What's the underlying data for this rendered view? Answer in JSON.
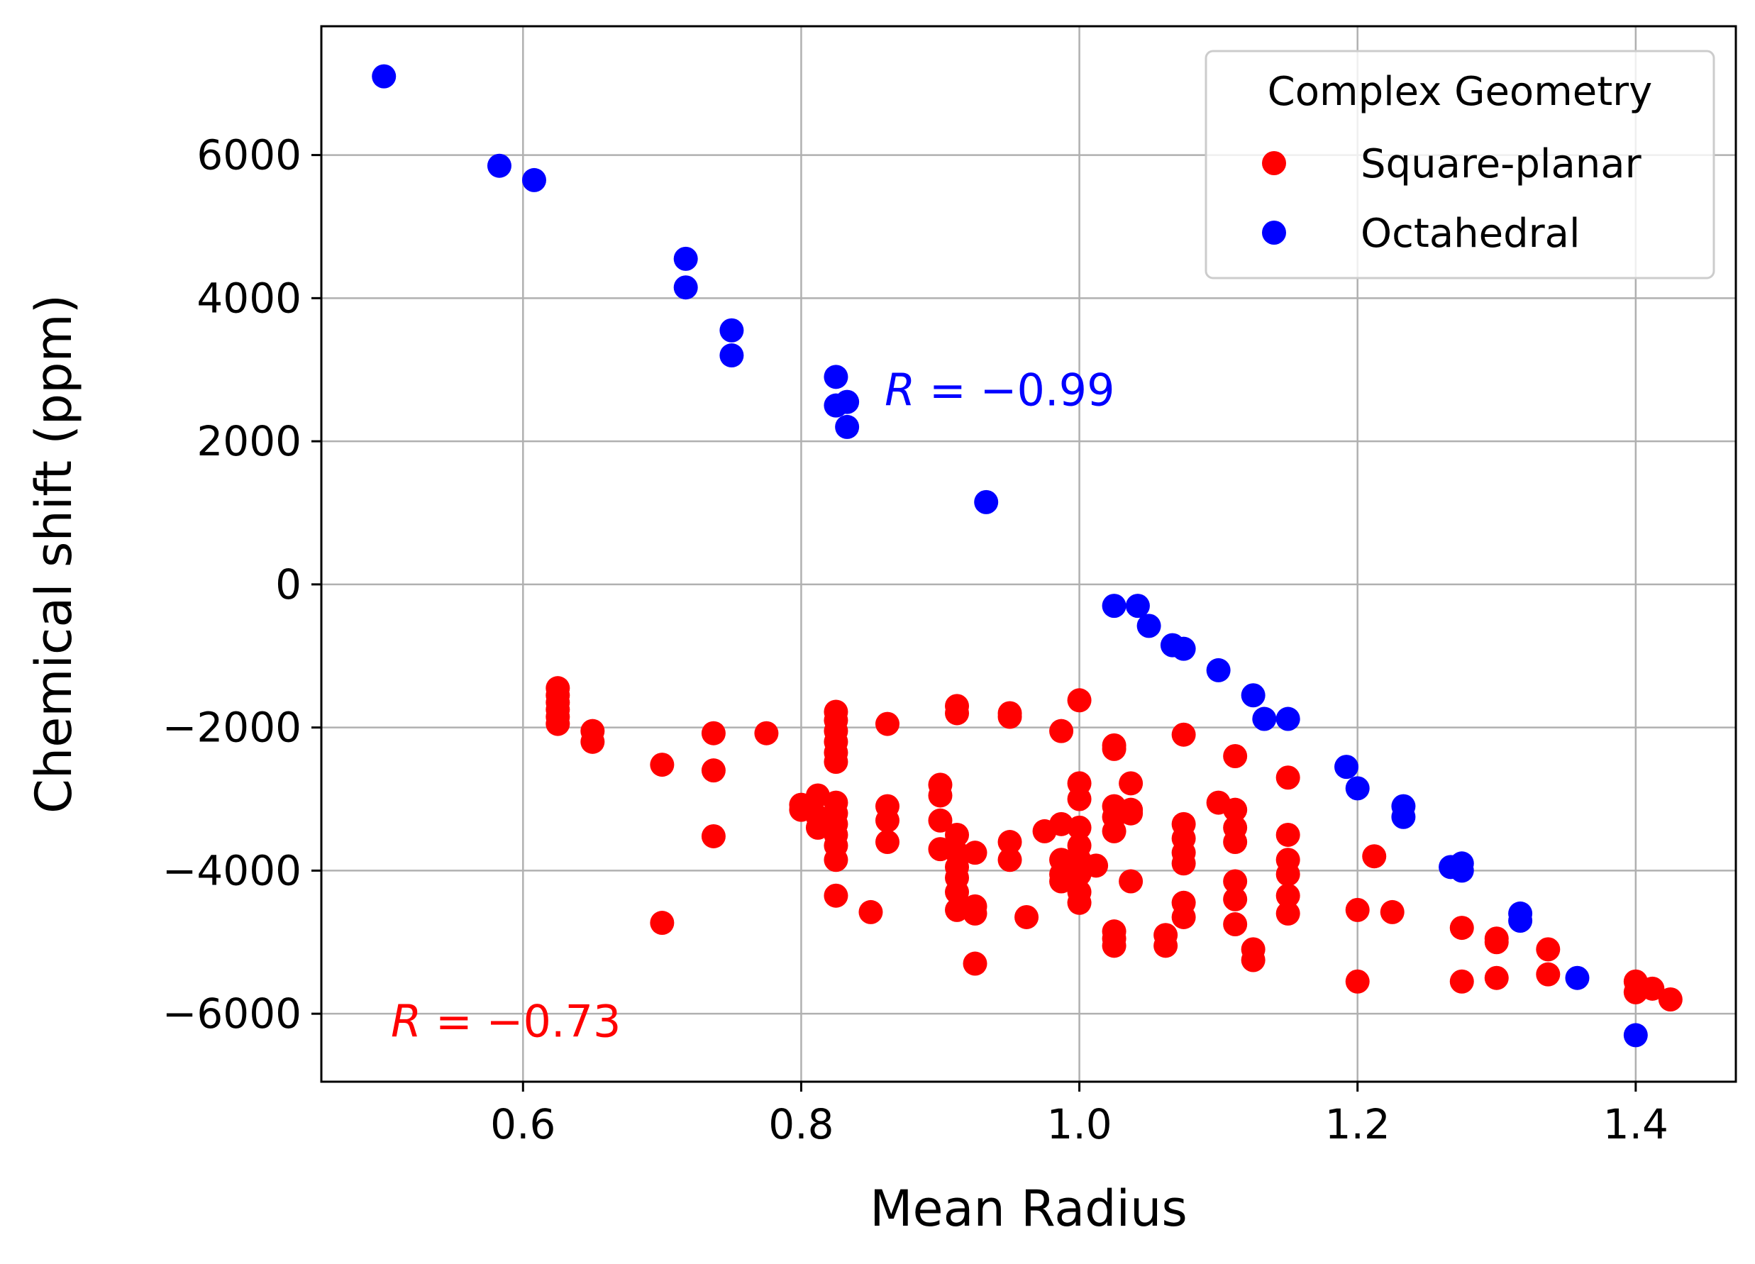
{
  "chart_data": {
    "type": "scatter",
    "title": "",
    "xlabel": "Mean Radius",
    "ylabel": "Chemical shift (ppm)",
    "xlim": [
      0.455,
      1.472
    ],
    "ylim": [
      -6950,
      7800
    ],
    "xticks": [
      0.6,
      0.8,
      1.0,
      1.2,
      1.4
    ],
    "xtick_labels": [
      "0.6",
      "0.8",
      "1.0",
      "1.2",
      "1.4"
    ],
    "yticks": [
      -6000,
      -4000,
      -2000,
      0,
      2000,
      4000,
      6000
    ],
    "ytick_labels": [
      "−6000",
      "−4000",
      "−2000",
      "0",
      "2000",
      "4000",
      "6000"
    ],
    "grid": true,
    "legend": {
      "title": "Complex Geometry",
      "placement": "top-right"
    },
    "annotations": [
      {
        "prefix": "R",
        "text": " = −0.99",
        "color": "#0000ff",
        "x": 0.86,
        "y": 2720
      },
      {
        "prefix": "R",
        "text": " = −0.73",
        "color": "#ff0000",
        "x": 0.505,
        "y": -6100
      }
    ],
    "series": [
      {
        "name": "Square-planar",
        "color": "#ff0000",
        "points": [
          [
            0.625,
            -1450
          ],
          [
            0.625,
            -1550
          ],
          [
            0.625,
            -1650
          ],
          [
            0.625,
            -1750
          ],
          [
            0.625,
            -1850
          ],
          [
            0.625,
            -1950
          ],
          [
            0.65,
            -2050
          ],
          [
            0.65,
            -2200
          ],
          [
            0.7,
            -2520
          ],
          [
            0.7,
            -4730
          ],
          [
            0.737,
            -2080
          ],
          [
            0.737,
            -2600
          ],
          [
            0.737,
            -3520
          ],
          [
            0.775,
            -2080
          ],
          [
            0.8,
            -3080
          ],
          [
            0.8,
            -3150
          ],
          [
            0.812,
            -2950
          ],
          [
            0.812,
            -3250
          ],
          [
            0.812,
            -3400
          ],
          [
            0.825,
            -1780
          ],
          [
            0.825,
            -1900
          ],
          [
            0.825,
            -2050
          ],
          [
            0.825,
            -2200
          ],
          [
            0.825,
            -2350
          ],
          [
            0.825,
            -2480
          ],
          [
            0.825,
            -3050
          ],
          [
            0.825,
            -3200
          ],
          [
            0.825,
            -3350
          ],
          [
            0.825,
            -3500
          ],
          [
            0.825,
            -3650
          ],
          [
            0.825,
            -3850
          ],
          [
            0.825,
            -4350
          ],
          [
            0.85,
            -4580
          ],
          [
            0.862,
            -1950
          ],
          [
            0.862,
            -3100
          ],
          [
            0.862,
            -3300
          ],
          [
            0.862,
            -3600
          ],
          [
            0.9,
            -2800
          ],
          [
            0.9,
            -2950
          ],
          [
            0.9,
            -3300
          ],
          [
            0.9,
            -3700
          ],
          [
            0.912,
            -1700
          ],
          [
            0.912,
            -1800
          ],
          [
            0.912,
            -3500
          ],
          [
            0.912,
            -3750
          ],
          [
            0.912,
            -3950
          ],
          [
            0.912,
            -4100
          ],
          [
            0.912,
            -4300
          ],
          [
            0.912,
            -4550
          ],
          [
            0.925,
            -3750
          ],
          [
            0.925,
            -4500
          ],
          [
            0.925,
            -4600
          ],
          [
            0.925,
            -5300
          ],
          [
            0.95,
            -1800
          ],
          [
            0.95,
            -1850
          ],
          [
            0.95,
            -3600
          ],
          [
            0.95,
            -3850
          ],
          [
            0.962,
            -4650
          ],
          [
            0.975,
            -3450
          ],
          [
            0.987,
            -2050
          ],
          [
            0.987,
            -3350
          ],
          [
            0.987,
            -3850
          ],
          [
            0.987,
            -4050
          ],
          [
            0.987,
            -4150
          ],
          [
            1.0,
            -1620
          ],
          [
            1.0,
            -2780
          ],
          [
            1.0,
            -3000
          ],
          [
            1.0,
            -3400
          ],
          [
            1.0,
            -3650
          ],
          [
            1.0,
            -3850
          ],
          [
            1.0,
            -4050
          ],
          [
            1.0,
            -4300
          ],
          [
            1.0,
            -4450
          ],
          [
            1.012,
            -3930
          ],
          [
            1.025,
            -2250
          ],
          [
            1.025,
            -2300
          ],
          [
            1.025,
            -3100
          ],
          [
            1.025,
            -3250
          ],
          [
            1.025,
            -3450
          ],
          [
            1.025,
            -4850
          ],
          [
            1.025,
            -4950
          ],
          [
            1.025,
            -5050
          ],
          [
            1.037,
            -2780
          ],
          [
            1.037,
            -3150
          ],
          [
            1.037,
            -3200
          ],
          [
            1.037,
            -4150
          ],
          [
            1.062,
            -4900
          ],
          [
            1.062,
            -5050
          ],
          [
            1.075,
            -2100
          ],
          [
            1.075,
            -3350
          ],
          [
            1.075,
            -3550
          ],
          [
            1.075,
            -3750
          ],
          [
            1.075,
            -3900
          ],
          [
            1.075,
            -4450
          ],
          [
            1.075,
            -4650
          ],
          [
            1.1,
            -3050
          ],
          [
            1.112,
            -2400
          ],
          [
            1.112,
            -3150
          ],
          [
            1.112,
            -3400
          ],
          [
            1.112,
            -3600
          ],
          [
            1.112,
            -4150
          ],
          [
            1.112,
            -4400
          ],
          [
            1.112,
            -4750
          ],
          [
            1.125,
            -5100
          ],
          [
            1.125,
            -5250
          ],
          [
            1.15,
            -2700
          ],
          [
            1.15,
            -3500
          ],
          [
            1.15,
            -3850
          ],
          [
            1.15,
            -4050
          ],
          [
            1.15,
            -4350
          ],
          [
            1.15,
            -4600
          ],
          [
            1.2,
            -4550
          ],
          [
            1.2,
            -5550
          ],
          [
            1.212,
            -3800
          ],
          [
            1.225,
            -4580
          ],
          [
            1.275,
            -4800
          ],
          [
            1.275,
            -5550
          ],
          [
            1.3,
            -4950
          ],
          [
            1.3,
            -5000
          ],
          [
            1.3,
            -5500
          ],
          [
            1.337,
            -5100
          ],
          [
            1.337,
            -5450
          ],
          [
            1.4,
            -5550
          ],
          [
            1.4,
            -5700
          ],
          [
            1.412,
            -5650
          ],
          [
            1.425,
            -5800
          ]
        ]
      },
      {
        "name": "Octahedral",
        "color": "#0000ff",
        "points": [
          [
            0.5,
            7100
          ],
          [
            0.583,
            5850
          ],
          [
            0.608,
            5650
          ],
          [
            0.717,
            4550
          ],
          [
            0.717,
            4150
          ],
          [
            0.75,
            3550
          ],
          [
            0.75,
            3200
          ],
          [
            0.825,
            2900
          ],
          [
            0.825,
            2500
          ],
          [
            0.833,
            2550
          ],
          [
            0.833,
            2200
          ],
          [
            0.933,
            1150
          ],
          [
            1.025,
            -300
          ],
          [
            1.042,
            -300
          ],
          [
            1.05,
            -580
          ],
          [
            1.067,
            -850
          ],
          [
            1.075,
            -900
          ],
          [
            1.1,
            -1200
          ],
          [
            1.125,
            -1550
          ],
          [
            1.133,
            -1880
          ],
          [
            1.15,
            -1880
          ],
          [
            1.192,
            -2550
          ],
          [
            1.2,
            -2850
          ],
          [
            1.233,
            -3100
          ],
          [
            1.233,
            -3250
          ],
          [
            1.267,
            -3950
          ],
          [
            1.275,
            -3900
          ],
          [
            1.275,
            -4000
          ],
          [
            1.317,
            -4600
          ],
          [
            1.317,
            -4700
          ],
          [
            1.358,
            -5500
          ],
          [
            1.4,
            -6300
          ]
        ]
      }
    ]
  }
}
